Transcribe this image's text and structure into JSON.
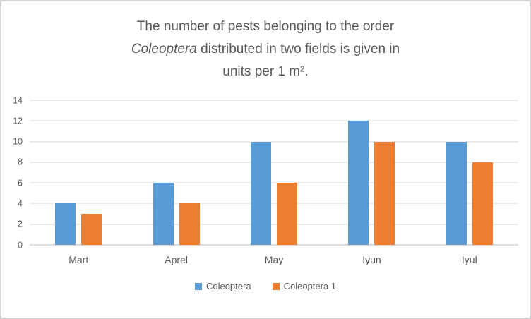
{
  "title": {
    "line1": "The number of pests belonging to the order",
    "line2_italic": "Coleoptera",
    "line2_rest": " distributed in two fields is given in",
    "line3": "units per 1 m²."
  },
  "colors": {
    "series1": "#5B9BD5",
    "series2": "#ED7D31",
    "gridline": "#D9D9D9",
    "text": "#595959"
  },
  "chart_data": {
    "type": "bar",
    "title": "The number of pests belonging to the order Coleoptera distributed in two fields is given in units per 1 m².",
    "categories": [
      "Mart",
      "Aprel",
      "May",
      "Iyun",
      "Iyul"
    ],
    "series": [
      {
        "name": "Coleoptera",
        "color": "#5B9BD5",
        "values": [
          4,
          6,
          10,
          12,
          10
        ]
      },
      {
        "name": "Coleoptera 1",
        "color": "#ED7D31",
        "values": [
          3,
          4,
          6,
          10,
          8
        ]
      }
    ],
    "xlabel": "",
    "ylabel": "",
    "ylim": [
      0,
      14
    ],
    "ytick_step": 2,
    "grid": true,
    "legend_position": "bottom"
  }
}
